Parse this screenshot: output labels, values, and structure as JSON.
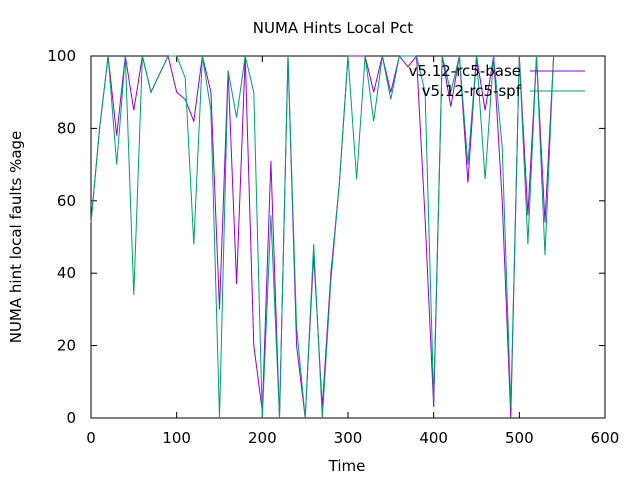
{
  "chart_data": {
    "type": "line",
    "title": "NUMA Hints Local Pct",
    "xlabel": "Time",
    "ylabel": "NUMA hint local faults %age",
    "xlim": [
      0,
      600
    ],
    "ylim": [
      0,
      100
    ],
    "xticks": [
      0,
      100,
      200,
      300,
      400,
      500,
      600
    ],
    "yticks": [
      0,
      20,
      40,
      60,
      80,
      100
    ],
    "grid": false,
    "legend_position": "top-right",
    "series": [
      {
        "name": "v5.12-rc5-base",
        "color": "#9400d3",
        "x": [
          0,
          10,
          20,
          30,
          40,
          50,
          60,
          70,
          80,
          90,
          100,
          110,
          120,
          130,
          140,
          150,
          160,
          170,
          180,
          190,
          200,
          210,
          220,
          230,
          240,
          250,
          260,
          270,
          280,
          290,
          300,
          310,
          320,
          330,
          340,
          350,
          360,
          370,
          380,
          390,
          400,
          410,
          420,
          430,
          440,
          450,
          460,
          470,
          480,
          490,
          500,
          510,
          520,
          530,
          540
        ],
        "values": [
          54,
          80,
          100,
          78,
          100,
          85,
          100,
          90,
          95,
          100,
          90,
          88,
          82,
          100,
          90,
          30,
          96,
          37,
          100,
          20,
          2,
          71,
          0,
          100,
          20,
          0,
          45,
          3,
          40,
          65,
          100,
          100,
          100,
          90,
          100,
          90,
          100,
          97,
          100,
          55,
          3,
          100,
          86,
          100,
          65,
          100,
          85,
          100,
          60,
          0,
          100,
          56,
          100,
          54,
          100
        ]
      },
      {
        "name": "v5.12-rc5-spf",
        "color": "#009e73",
        "x": [
          0,
          10,
          20,
          30,
          40,
          50,
          60,
          70,
          80,
          90,
          100,
          110,
          120,
          130,
          140,
          150,
          160,
          170,
          180,
          190,
          200,
          210,
          220,
          230,
          240,
          250,
          260,
          270,
          280,
          290,
          300,
          310,
          320,
          330,
          340,
          350,
          360,
          370,
          380,
          390,
          400,
          410,
          420,
          430,
          440,
          450,
          460,
          470,
          480,
          490,
          500,
          510,
          520,
          530,
          540
        ],
        "values": [
          54,
          80,
          100,
          70,
          100,
          34,
          100,
          90,
          95,
          100,
          100,
          94,
          48,
          100,
          85,
          0,
          96,
          83,
          100,
          90,
          0,
          56,
          0,
          100,
          25,
          0,
          48,
          0,
          38,
          65,
          100,
          66,
          100,
          82,
          100,
          88,
          100,
          100,
          100,
          90,
          5,
          100,
          90,
          100,
          70,
          100,
          66,
          100,
          75,
          3,
          100,
          48,
          100,
          45,
          100
        ]
      }
    ]
  }
}
